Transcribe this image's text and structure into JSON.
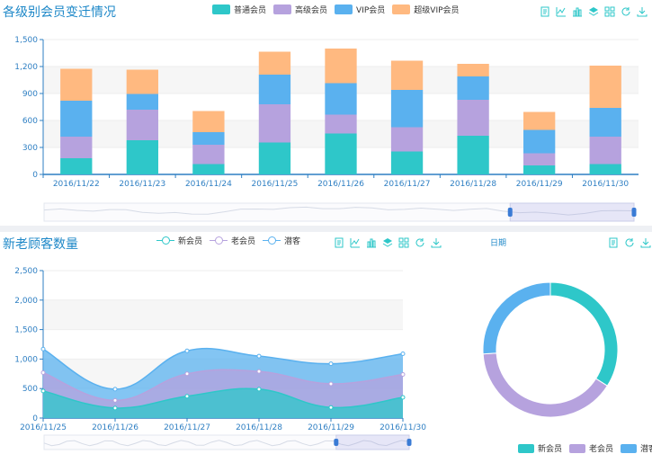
{
  "chart_data": [
    {
      "id": "member-change",
      "type": "bar",
      "stacked": true,
      "title": "各级别会员变迁情况",
      "categories": [
        "2016/11/22",
        "2016/11/23",
        "2016/11/24",
        "2016/11/25",
        "2016/11/26",
        "2016/11/27",
        "2016/11/28",
        "2016/11/29",
        "2016/11/30"
      ],
      "series": [
        {
          "name": "普通会员",
          "color": "#2ec7c9",
          "values": [
            180,
            380,
            115,
            355,
            455,
            255,
            430,
            100,
            115
          ]
        },
        {
          "name": "高级会员",
          "color": "#b6a2de",
          "values": [
            240,
            340,
            215,
            425,
            210,
            270,
            400,
            135,
            305
          ]
        },
        {
          "name": "VIP会员",
          "color": "#5ab1ef",
          "values": [
            400,
            175,
            140,
            330,
            350,
            415,
            260,
            260,
            320
          ]
        },
        {
          "name": "超级VIP会员",
          "color": "#ffb980",
          "values": [
            355,
            270,
            235,
            255,
            385,
            325,
            140,
            200,
            470
          ]
        }
      ],
      "ylim": [
        0,
        1500
      ],
      "yticks": [
        0,
        300,
        600,
        900,
        1200,
        1500
      ],
      "ytick_labels": [
        "0",
        "300",
        "600",
        "900",
        "1,200",
        "1,500"
      ],
      "grid": true,
      "legend": "top-center",
      "dataZoom": {
        "start": 0.79,
        "end": 1.0
      }
    },
    {
      "id": "customers",
      "type": "area",
      "stacked": true,
      "title": "新老顾客数量",
      "categories": [
        "2016/11/25",
        "2016/11/26",
        "2016/11/27",
        "2016/11/28",
        "2016/11/29",
        "2016/11/30"
      ],
      "series": [
        {
          "name": "新会员",
          "color": "#2ec7c9",
          "values": [
            460,
            170,
            370,
            490,
            180,
            350
          ]
        },
        {
          "name": "老会员",
          "color": "#b6a2de",
          "values": [
            310,
            130,
            380,
            300,
            400,
            390
          ]
        },
        {
          "name": "潜客",
          "color": "#5ab1ef",
          "values": [
            400,
            190,
            390,
            260,
            340,
            350
          ]
        }
      ],
      "ylim": [
        0,
        2500
      ],
      "yticks": [
        0,
        500,
        1000,
        1500,
        2000,
        2500
      ],
      "ytick_labels": [
        "0",
        "500",
        "1,000",
        "1,500",
        "2,000",
        "2,500"
      ],
      "grid": true,
      "smooth": true,
      "legend": "top-center",
      "dataZoom": {
        "start": 0.8,
        "end": 1.0
      }
    },
    {
      "id": "customer-share",
      "type": "pie",
      "donut": true,
      "title": "日期",
      "labels": [
        "新会员",
        "老会员",
        "潜客"
      ],
      "values": [
        34,
        40,
        26
      ],
      "colors": [
        "#2ec7c9",
        "#b6a2de",
        "#5ab1ef"
      ],
      "legend": "bottom-right"
    }
  ],
  "toolbox_top": [
    "data-view-icon",
    "line-chart-icon",
    "bar-chart-icon",
    "stack-icon",
    "tiled-icon",
    "restore-icon",
    "save-image-icon"
  ],
  "toolbox_mid": [
    "data-view-icon",
    "line-chart-icon",
    "bar-chart-icon",
    "stack-icon",
    "tiled-icon",
    "restore-icon",
    "save-image-icon"
  ],
  "toolbox_pie": [
    "data-view-icon",
    "restore-icon",
    "save-image-icon"
  ]
}
